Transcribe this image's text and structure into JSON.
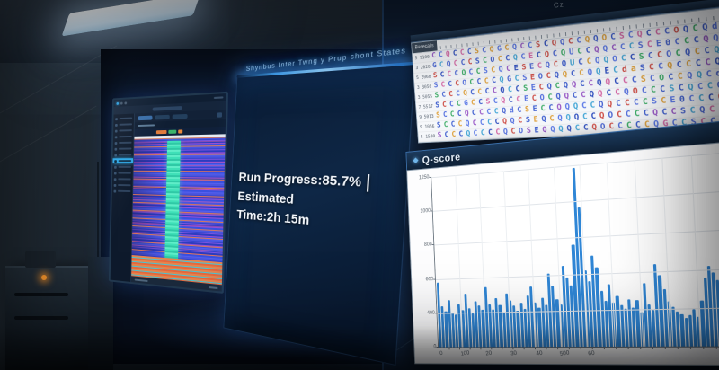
{
  "theme": {
    "bar_color": "#2f86d6",
    "accent_cyan": "#2da9e8",
    "glow_blue": "#48a8f0",
    "panel_navy": "#0e2746",
    "heatmap_teal": "#3fe0b8",
    "heatmap_orange": "#e8854e",
    "led_orange": "#ff9b2e"
  },
  "wall": {
    "corner_label": "Cz"
  },
  "center_panel": {
    "title": "Shynbus Inter Twng y Prup chont States",
    "line1_a": "Run Progress:85.7%",
    "pipe": "|",
    "line1_b": "Estimated",
    "line2": "Time:2h 15m"
  },
  "left_screen": {
    "sidebar": {
      "count": 13,
      "active_index": 7
    },
    "tabs": {
      "count": 3
    }
  },
  "sequence_panel": {
    "header_label": "Basecalls",
    "palette": [
      "#3f5fd0",
      "#d05048",
      "#5a78e8",
      "#3fae68",
      "#2f4fc0",
      "#e0a23c",
      "#4a66d4",
      "#9a5ac8",
      "#5570e0",
      "#45a8d8",
      "#3f5fd0",
      "#d86aa8"
    ],
    "rows": [
      {
        "label": "5 9100",
        "bases": "CCQCCCSCQGCQCCSCQQCCQQOCSCQCCCOQCQda"
      },
      {
        "label": "3 2020",
        "bases": "GCQCCCSCOCCQCECQCQUCCQQCCCSCE0CCCQQC"
      },
      {
        "label": "5 2060",
        "bases": "SCCCQCCSCQCESECQCQUCCQQOCCSCCOCQCCQa"
      },
      {
        "label": "3 3050",
        "bases": "SCCCOCCCCQGCSEOCQQCCQQECdaSCCQCCCCQC"
      },
      {
        "label": "3 5055",
        "bases": "SCCCQCCCCQCCSECQCQQCCQQCCCSCOCCQQCdC"
      },
      {
        "label": "7 5517",
        "bases": "SCCCGCCSCQCCECOCQQCCQQCCQOCCCSCQCCQ0"
      },
      {
        "label": "9 5013",
        "bases": "SCCCQCCCCQdCSECCQQQCCQQCCCCSCE0CCCQC"
      },
      {
        "label": "9 1056",
        "bases": "SCCCQCCCCQQCSEQCQQQCCQOCCCCQCCSCQCCa"
      },
      {
        "label": "5 1500",
        "bases": "SCCCQCCCCQCOSEQQQQCCQOCCCCCQGCCSCCQd"
      }
    ]
  },
  "qscore_panel": {
    "title": "Q-score"
  },
  "chart_data": {
    "type": "bar",
    "title": "Q-score",
    "xlabel": "",
    "ylabel": "",
    "ylim": [
      0,
      1250
    ],
    "grid": true,
    "bar_color": "#2f86d6",
    "y_tick_labels": [
      "1250",
      "1000",
      "800",
      "600",
      "400",
      "0"
    ],
    "x_tick_labels": [
      "0",
      "100",
      "20",
      "30",
      "40",
      "500",
      "60"
    ],
    "values": [
      470,
      300,
      260,
      345,
      250,
      235,
      310,
      265,
      385,
      280,
      245,
      330,
      300,
      265,
      430,
      305,
      270,
      350,
      300,
      245,
      380,
      330,
      290,
      255,
      312,
      270,
      360,
      420,
      310,
      275,
      340,
      295,
      510,
      420,
      330,
      290,
      560,
      480,
      420,
      700,
      1230,
      960,
      520,
      450,
      620,
      540,
      380,
      310,
      420,
      300,
      340,
      280,
      255,
      320,
      260,
      310,
      230,
      420,
      280,
      245,
      550,
      470,
      380,
      300,
      260,
      230,
      210,
      185,
      205,
      240,
      195,
      300,
      450,
      520,
      480,
      430,
      390,
      420,
      460,
      500
    ]
  }
}
